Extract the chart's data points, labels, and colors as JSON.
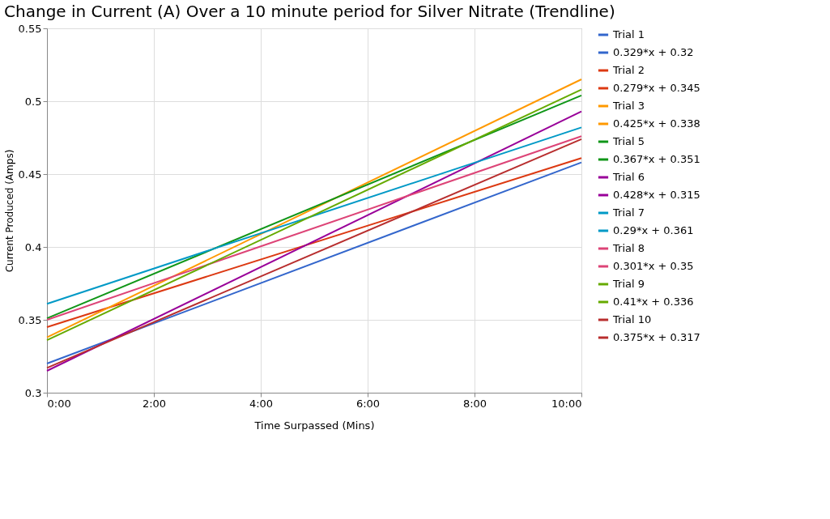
{
  "chart_data": {
    "type": "line",
    "title": "Change in Current (A) Over a 10 minute period for Silver Nitrate (Trendline)",
    "xlabel": "Time Surpassed (Mins)",
    "ylabel": "Current Produced (Amps)",
    "x": [
      0,
      10
    ],
    "xlim": [
      0,
      10
    ],
    "xticks": [
      {
        "value": 0,
        "label": "0:00"
      },
      {
        "value": 2,
        "label": "2:00"
      },
      {
        "value": 4,
        "label": "4:00"
      },
      {
        "value": 6,
        "label": "6:00"
      },
      {
        "value": 8,
        "label": "8:00"
      },
      {
        "value": 10,
        "label": "10:00"
      }
    ],
    "ylim": [
      0.3,
      0.55
    ],
    "yticks": [
      0.3,
      0.35,
      0.4,
      0.45,
      0.5,
      0.55
    ],
    "grid": true,
    "legend": "right",
    "marker": "none",
    "line_style": "solid",
    "series": [
      {
        "name": "Trial 1",
        "color": "#3366cc",
        "values": [
          null,
          null
        ]
      },
      {
        "name": "0.329*x + 0.32",
        "color": "#3366cc",
        "values": [
          0.32,
          0.458
        ]
      },
      {
        "name": "Trial 2",
        "color": "#dc3912",
        "values": [
          null,
          null
        ]
      },
      {
        "name": "0.279*x + 0.345",
        "color": "#dc3912",
        "values": [
          0.345,
          0.461
        ]
      },
      {
        "name": "Trial 3",
        "color": "#ff9900",
        "values": [
          null,
          null
        ]
      },
      {
        "name": "0.425*x + 0.338",
        "color": "#ff9900",
        "values": [
          0.338,
          0.515
        ]
      },
      {
        "name": "Trial 5",
        "color": "#109618",
        "values": [
          null,
          null
        ]
      },
      {
        "name": "0.367*x + 0.351",
        "color": "#109618",
        "values": [
          0.351,
          0.504
        ]
      },
      {
        "name": "Trial 6",
        "color": "#990099",
        "values": [
          null,
          null
        ]
      },
      {
        "name": "0.428*x + 0.315",
        "color": "#990099",
        "values": [
          0.315,
          0.493
        ]
      },
      {
        "name": "Trial 7",
        "color": "#0099c6",
        "values": [
          null,
          null
        ]
      },
      {
        "name": "0.29*x + 0.361",
        "color": "#0099c6",
        "values": [
          0.361,
          0.482
        ]
      },
      {
        "name": "Trial 8",
        "color": "#dd4477",
        "values": [
          null,
          null
        ]
      },
      {
        "name": "0.301*x + 0.35",
        "color": "#dd4477",
        "values": [
          0.35,
          0.476
        ]
      },
      {
        "name": "Trial 9",
        "color": "#66aa00",
        "values": [
          null,
          null
        ]
      },
      {
        "name": "0.41*x + 0.336",
        "color": "#66aa00",
        "values": [
          0.336,
          0.508
        ]
      },
      {
        "name": "Trial 10",
        "color": "#b82e2e",
        "values": [
          null,
          null
        ]
      },
      {
        "name": "0.375*x + 0.317",
        "color": "#b82e2e",
        "values": [
          0.317,
          0.474
        ]
      }
    ]
  }
}
